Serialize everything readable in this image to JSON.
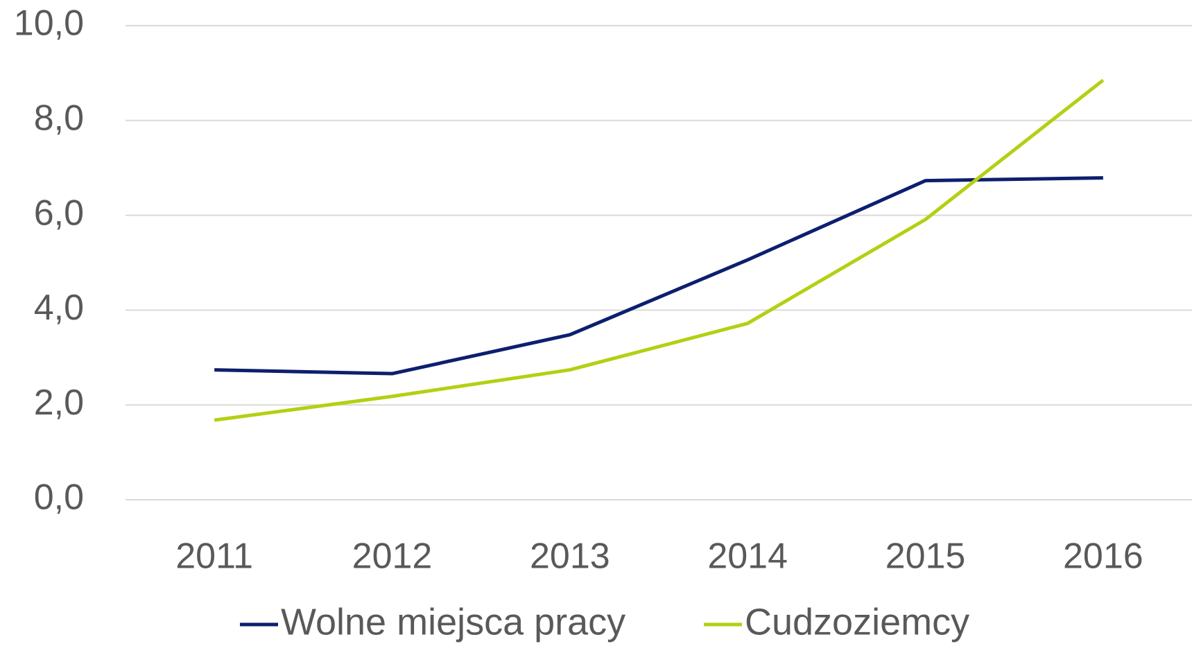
{
  "chart_data": {
    "type": "line",
    "categories": [
      "2011",
      "2012",
      "2013",
      "2014",
      "2015",
      "2016"
    ],
    "series": [
      {
        "name": "Wolne miejsca pracy",
        "color": "#0d1f6e",
        "values": [
          2.74,
          2.66,
          3.48,
          5.06,
          6.73,
          6.79
        ]
      },
      {
        "name": "Cudzoziemcy",
        "color": "#b5cf13",
        "values": [
          1.68,
          2.18,
          2.74,
          3.72,
          5.91,
          8.85
        ]
      }
    ],
    "ylim": [
      0,
      10
    ],
    "yticks": [
      {
        "value": 0,
        "label": "0,0"
      },
      {
        "value": 2,
        "label": "2,0"
      },
      {
        "value": 4,
        "label": "4,0"
      },
      {
        "value": 6,
        "label": "6,0"
      },
      {
        "value": 8,
        "label": "8,0"
      },
      {
        "value": 10,
        "label": "10,0"
      }
    ],
    "grid": true,
    "legend": "bottom"
  }
}
